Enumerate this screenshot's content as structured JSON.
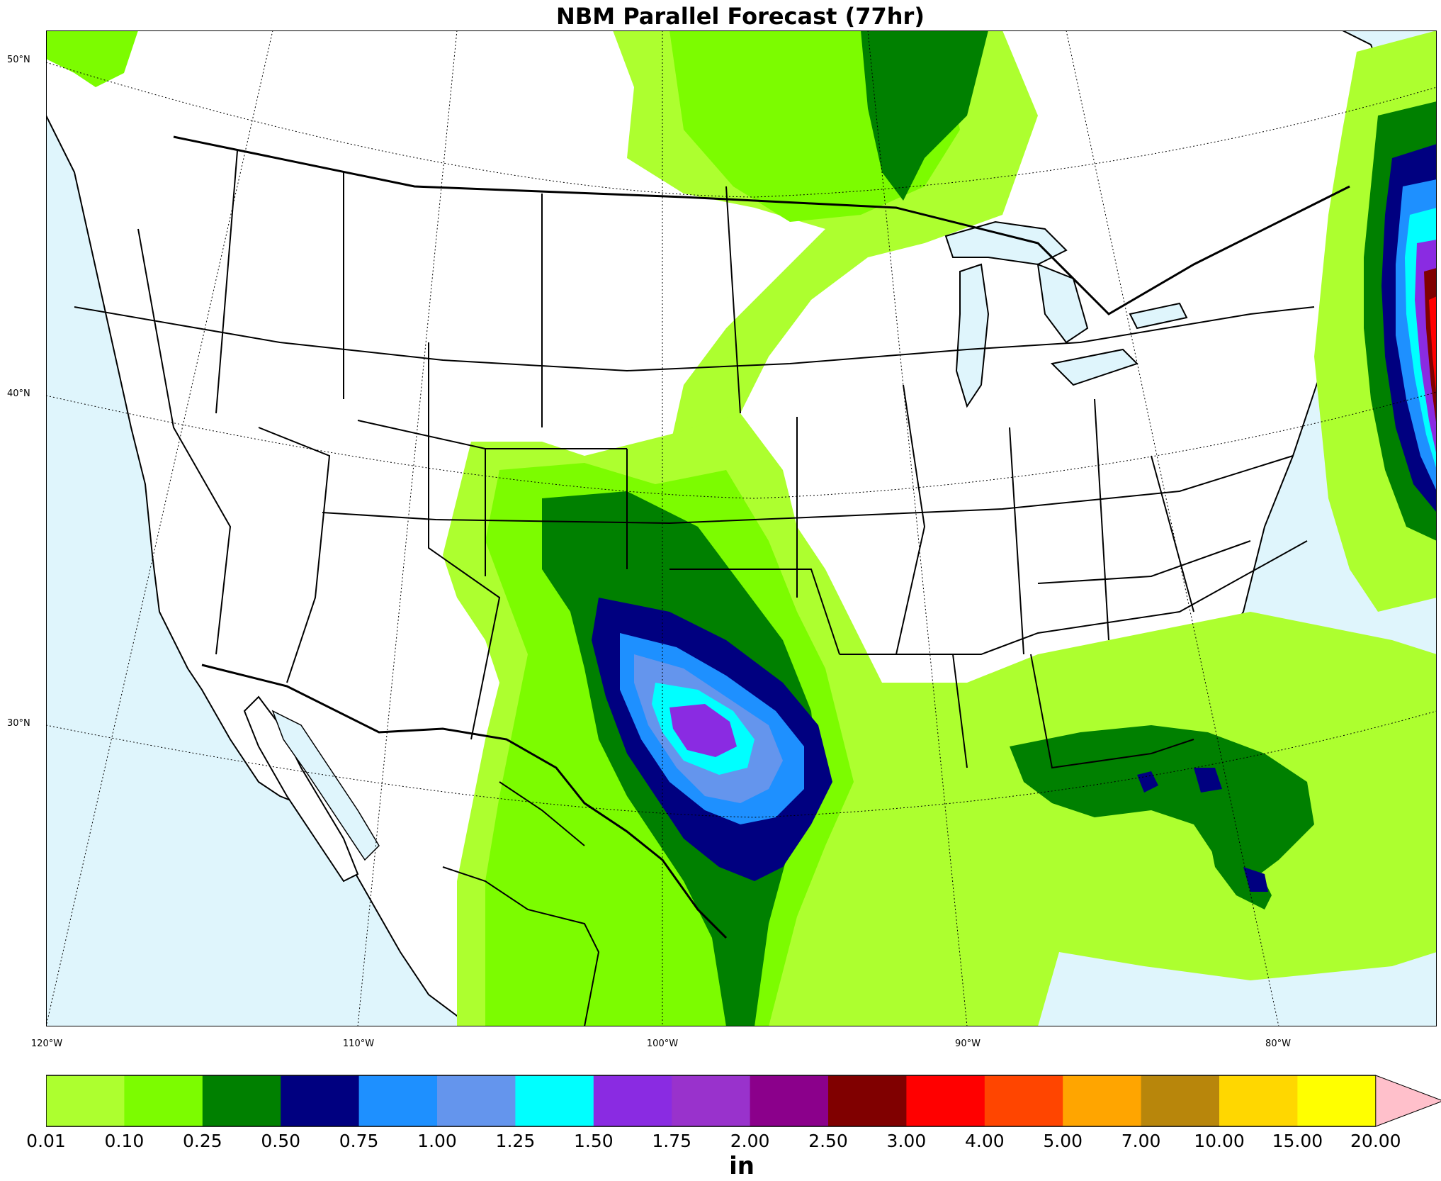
{
  "title": "NBM Parallel Forecast (77hr)",
  "units": "in",
  "lat_labels": [
    "50°N",
    "40°N",
    "30°N"
  ],
  "lon_labels": [
    "120°W",
    "110°W",
    "100°W",
    "90°W",
    "80°W"
  ],
  "colorbar": {
    "ticks": [
      "0.01",
      "0.10",
      "0.25",
      "0.50",
      "0.75",
      "1.00",
      "1.25",
      "1.50",
      "1.75",
      "2.00",
      "2.50",
      "3.00",
      "4.00",
      "5.00",
      "7.00",
      "10.00",
      "15.00",
      "20.00"
    ],
    "colors": [
      "#adff2f",
      "#7cfc00",
      "#008000",
      "#000080",
      "#1e90ff",
      "#6495ed",
      "#00ffff",
      "#8a2be2",
      "#9932cc",
      "#8b008b",
      "#800000",
      "#ff0000",
      "#ff4500",
      "#ffa500",
      "#b8860b",
      "#ffd700",
      "#ffff00"
    ],
    "extend_color": "#ffc0cb"
  },
  "colors": {
    "water": "#dff5fc",
    "land": "#ffffff"
  }
}
